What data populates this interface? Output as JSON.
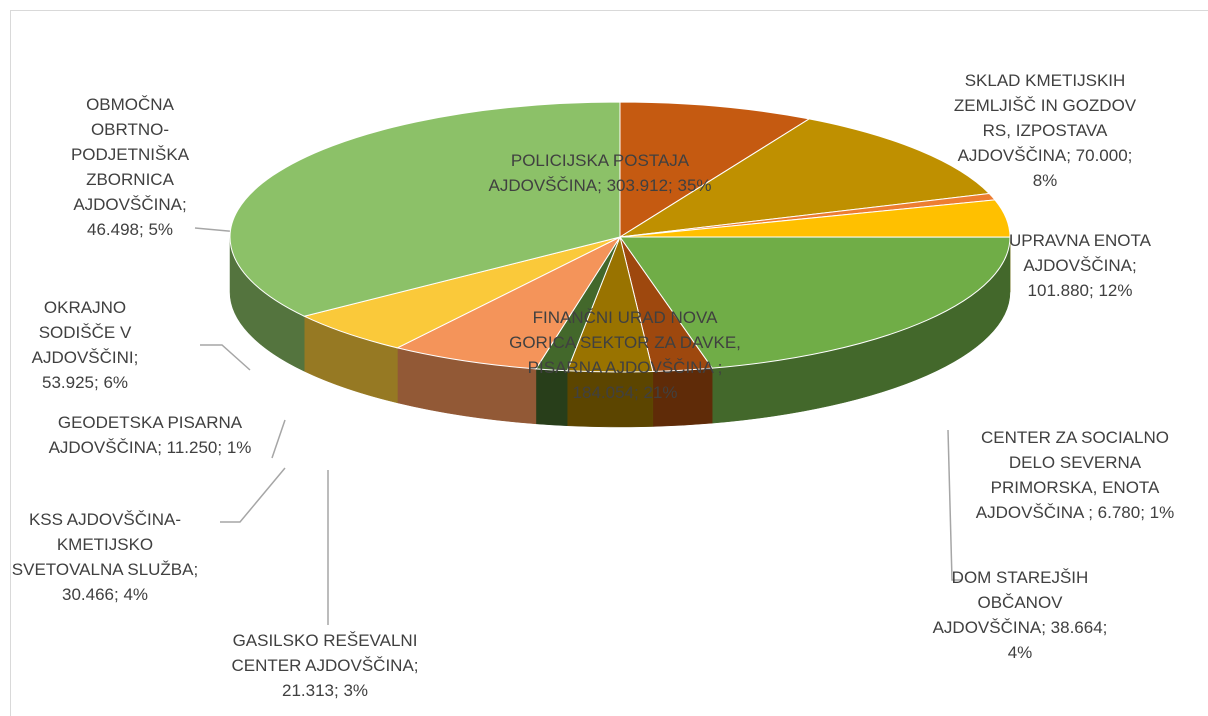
{
  "chart_data": {
    "type": "pie3d",
    "separator": "; ",
    "categories": [
      "SKLAD KMETIJSKIH ZEMLJIŠČ IN GOZDOV RS, IZPOSTAVA AJDOVŠČINA",
      "UPRAVNA ENOTA AJDOVŠČINA",
      "CENTER ZA SOCIALNO DELO SEVERNA PRIMORSKA, ENOTA AJDOVŠČINA ",
      "DOM STAREJŠIH OBČANOV AJDOVŠČINA",
      "FINANČNI URAD NOVA GORICA SEKTOR ZA DAVKE, PISARNA AJDOVŠČINA ",
      "GASILSKO REŠEVALNI CENTER AJDOVŠČINA",
      "KSS AJDOVŠČINA-KMETIJSKO SVETOVALNA SLUŽBA",
      "GEODETSKA PISARNA AJDOVŠČINA",
      "OKRAJNO SODIŠČE V AJDOVŠČINI",
      "OBMOČNA OBRTNO-PODJETNIŠKA ZBORNICA AJDOVŠČINA",
      "POLICIJSKA POSTAJA AJDOVŠČINA"
    ],
    "values": [
      70000,
      101880,
      6780,
      38664,
      184054,
      21313,
      30466,
      11250,
      53925,
      46498,
      303912
    ],
    "value_labels": [
      "70.000",
      "101.880",
      "6.780",
      "38.664",
      "184.054",
      "21.313",
      "30.466",
      "11.250",
      "53.925",
      "46.498",
      "303.912"
    ],
    "percent_labels": [
      "8%",
      "12%",
      "1%",
      "4%",
      "21%",
      "3%",
      "4%",
      "1%",
      "6%",
      "5%",
      "35%"
    ],
    "colors": [
      "#c55a11",
      "#bf9000",
      "#ed7d31",
      "#ffc000",
      "#70ad47",
      "#9e480e",
      "#997300",
      "#43682b",
      "#f4945a",
      "#fac93a",
      "#8cc168"
    ]
  }
}
